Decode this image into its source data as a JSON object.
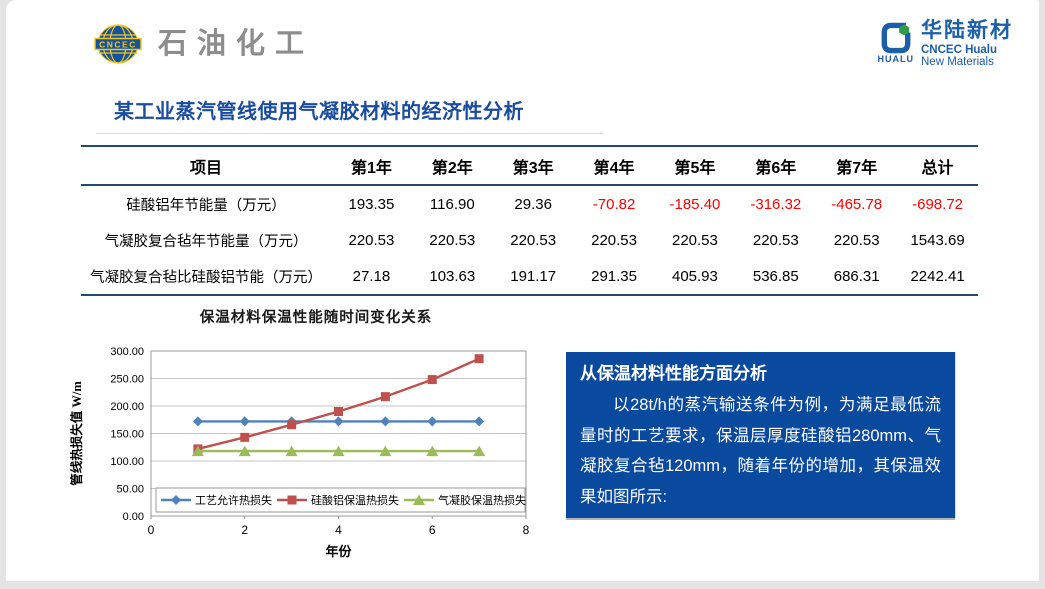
{
  "header": {
    "left_logo": {
      "badge": "CNCEC",
      "text": "石油化工"
    },
    "right_logo": {
      "mark_label": "HUALU",
      "name_cn": "华陆新材",
      "name_en1": "CNCEC Hualu",
      "name_en2": "New Materials"
    }
  },
  "title": "某工业蒸汽管线使用气凝胶材料的经济性分析",
  "table": {
    "headers": [
      "项目",
      "第1年",
      "第2年",
      "第3年",
      "第4年",
      "第5年",
      "第6年",
      "第7年",
      "总计"
    ],
    "rows": [
      {
        "label": "硅酸铝年节能量（万元）",
        "values": [
          "193.35",
          "116.90",
          "29.36",
          "-70.82",
          "-185.40",
          "-316.32",
          "-465.78",
          "-698.72"
        ]
      },
      {
        "label": "气凝胶复合毡年节能量（万元）",
        "values": [
          "220.53",
          "220.53",
          "220.53",
          "220.53",
          "220.53",
          "220.53",
          "220.53",
          "1543.69"
        ]
      },
      {
        "label": "气凝胶复合毡比硅酸铝节能（万元）",
        "values": [
          "27.18",
          "103.63",
          "191.17",
          "291.35",
          "405.93",
          "536.85",
          "686.31",
          "2242.41"
        ]
      }
    ],
    "negative_color": "#ff0000"
  },
  "chart_data": {
    "type": "line",
    "title": "保温材料保温性能随时间变化关系",
    "xlabel": "年份",
    "ylabel": "管线热损失值 W/m",
    "x": [
      1,
      2,
      3,
      4,
      5,
      6,
      7
    ],
    "xlim": [
      0,
      8
    ],
    "x_ticks": [
      0,
      2,
      4,
      6,
      8
    ],
    "ylim": [
      0,
      300
    ],
    "y_ticks": [
      "0.00",
      "50.00",
      "100.00",
      "150.00",
      "200.00",
      "250.00",
      "300.00"
    ],
    "grid": true,
    "legend_position": "bottom-inside",
    "series": [
      {
        "name": "工艺允许热损失",
        "color": "#4f81bd",
        "marker": "diamond",
        "values": [
          172,
          172,
          172,
          172,
          172,
          172,
          172
        ]
      },
      {
        "name": "硅酸铝保温热损失",
        "color": "#c0504d",
        "marker": "square",
        "values": [
          122,
          143,
          166,
          190,
          217,
          248,
          286
        ]
      },
      {
        "name": "气凝胶保温热损失",
        "color": "#9bbb59",
        "marker": "triangle",
        "values": [
          118,
          118,
          118,
          118,
          118,
          118,
          118
        ]
      }
    ]
  },
  "analysis_box": {
    "heading": "从保温材料性能方面分析",
    "body": "以28t/h的蒸汽输送条件为例，为满足最低流量时的工艺要求，保温层厚度硅酸铝280mm、气凝胶复合毡120mm，随着年份的增加，其保温效果如图所示:",
    "background": "#0a4a9e"
  }
}
